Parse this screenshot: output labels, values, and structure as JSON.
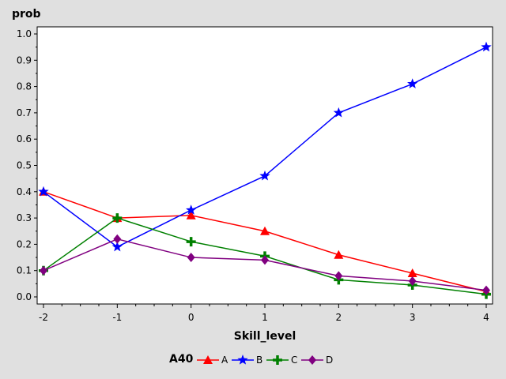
{
  "chart_data": {
    "type": "line",
    "title": "",
    "xlabel": "Skill_level",
    "ylabel": "prob",
    "x": [
      -2,
      -1,
      0,
      1,
      2,
      3,
      4
    ],
    "xlim": [
      -2,
      4
    ],
    "ylim": [
      0,
      1.0
    ],
    "xticks": [
      "-2",
      "-1",
      "0",
      "1",
      "2",
      "3",
      "4"
    ],
    "yticks": [
      "0.0",
      "0.1",
      "0.2",
      "0.3",
      "0.4",
      "0.5",
      "0.6",
      "0.7",
      "0.8",
      "0.9",
      "1.0"
    ],
    "grid": false,
    "legend": {
      "title": "A40",
      "placement": "bottom"
    },
    "series": [
      {
        "name": "A",
        "color": "#ff0000",
        "marker": "triangle",
        "values": [
          0.4,
          0.3,
          0.31,
          0.25,
          0.16,
          0.09,
          0.02
        ]
      },
      {
        "name": "B",
        "color": "#0000ff",
        "marker": "star",
        "values": [
          0.4,
          0.19,
          0.33,
          0.46,
          0.7,
          0.81,
          0.95
        ]
      },
      {
        "name": "C",
        "color": "#008000",
        "marker": "plus",
        "values": [
          0.1,
          0.3,
          0.21,
          0.155,
          0.065,
          0.045,
          0.01
        ]
      },
      {
        "name": "D",
        "color": "#800080",
        "marker": "diamond",
        "values": [
          0.1,
          0.22,
          0.15,
          0.14,
          0.08,
          0.06,
          0.025
        ]
      }
    ]
  }
}
